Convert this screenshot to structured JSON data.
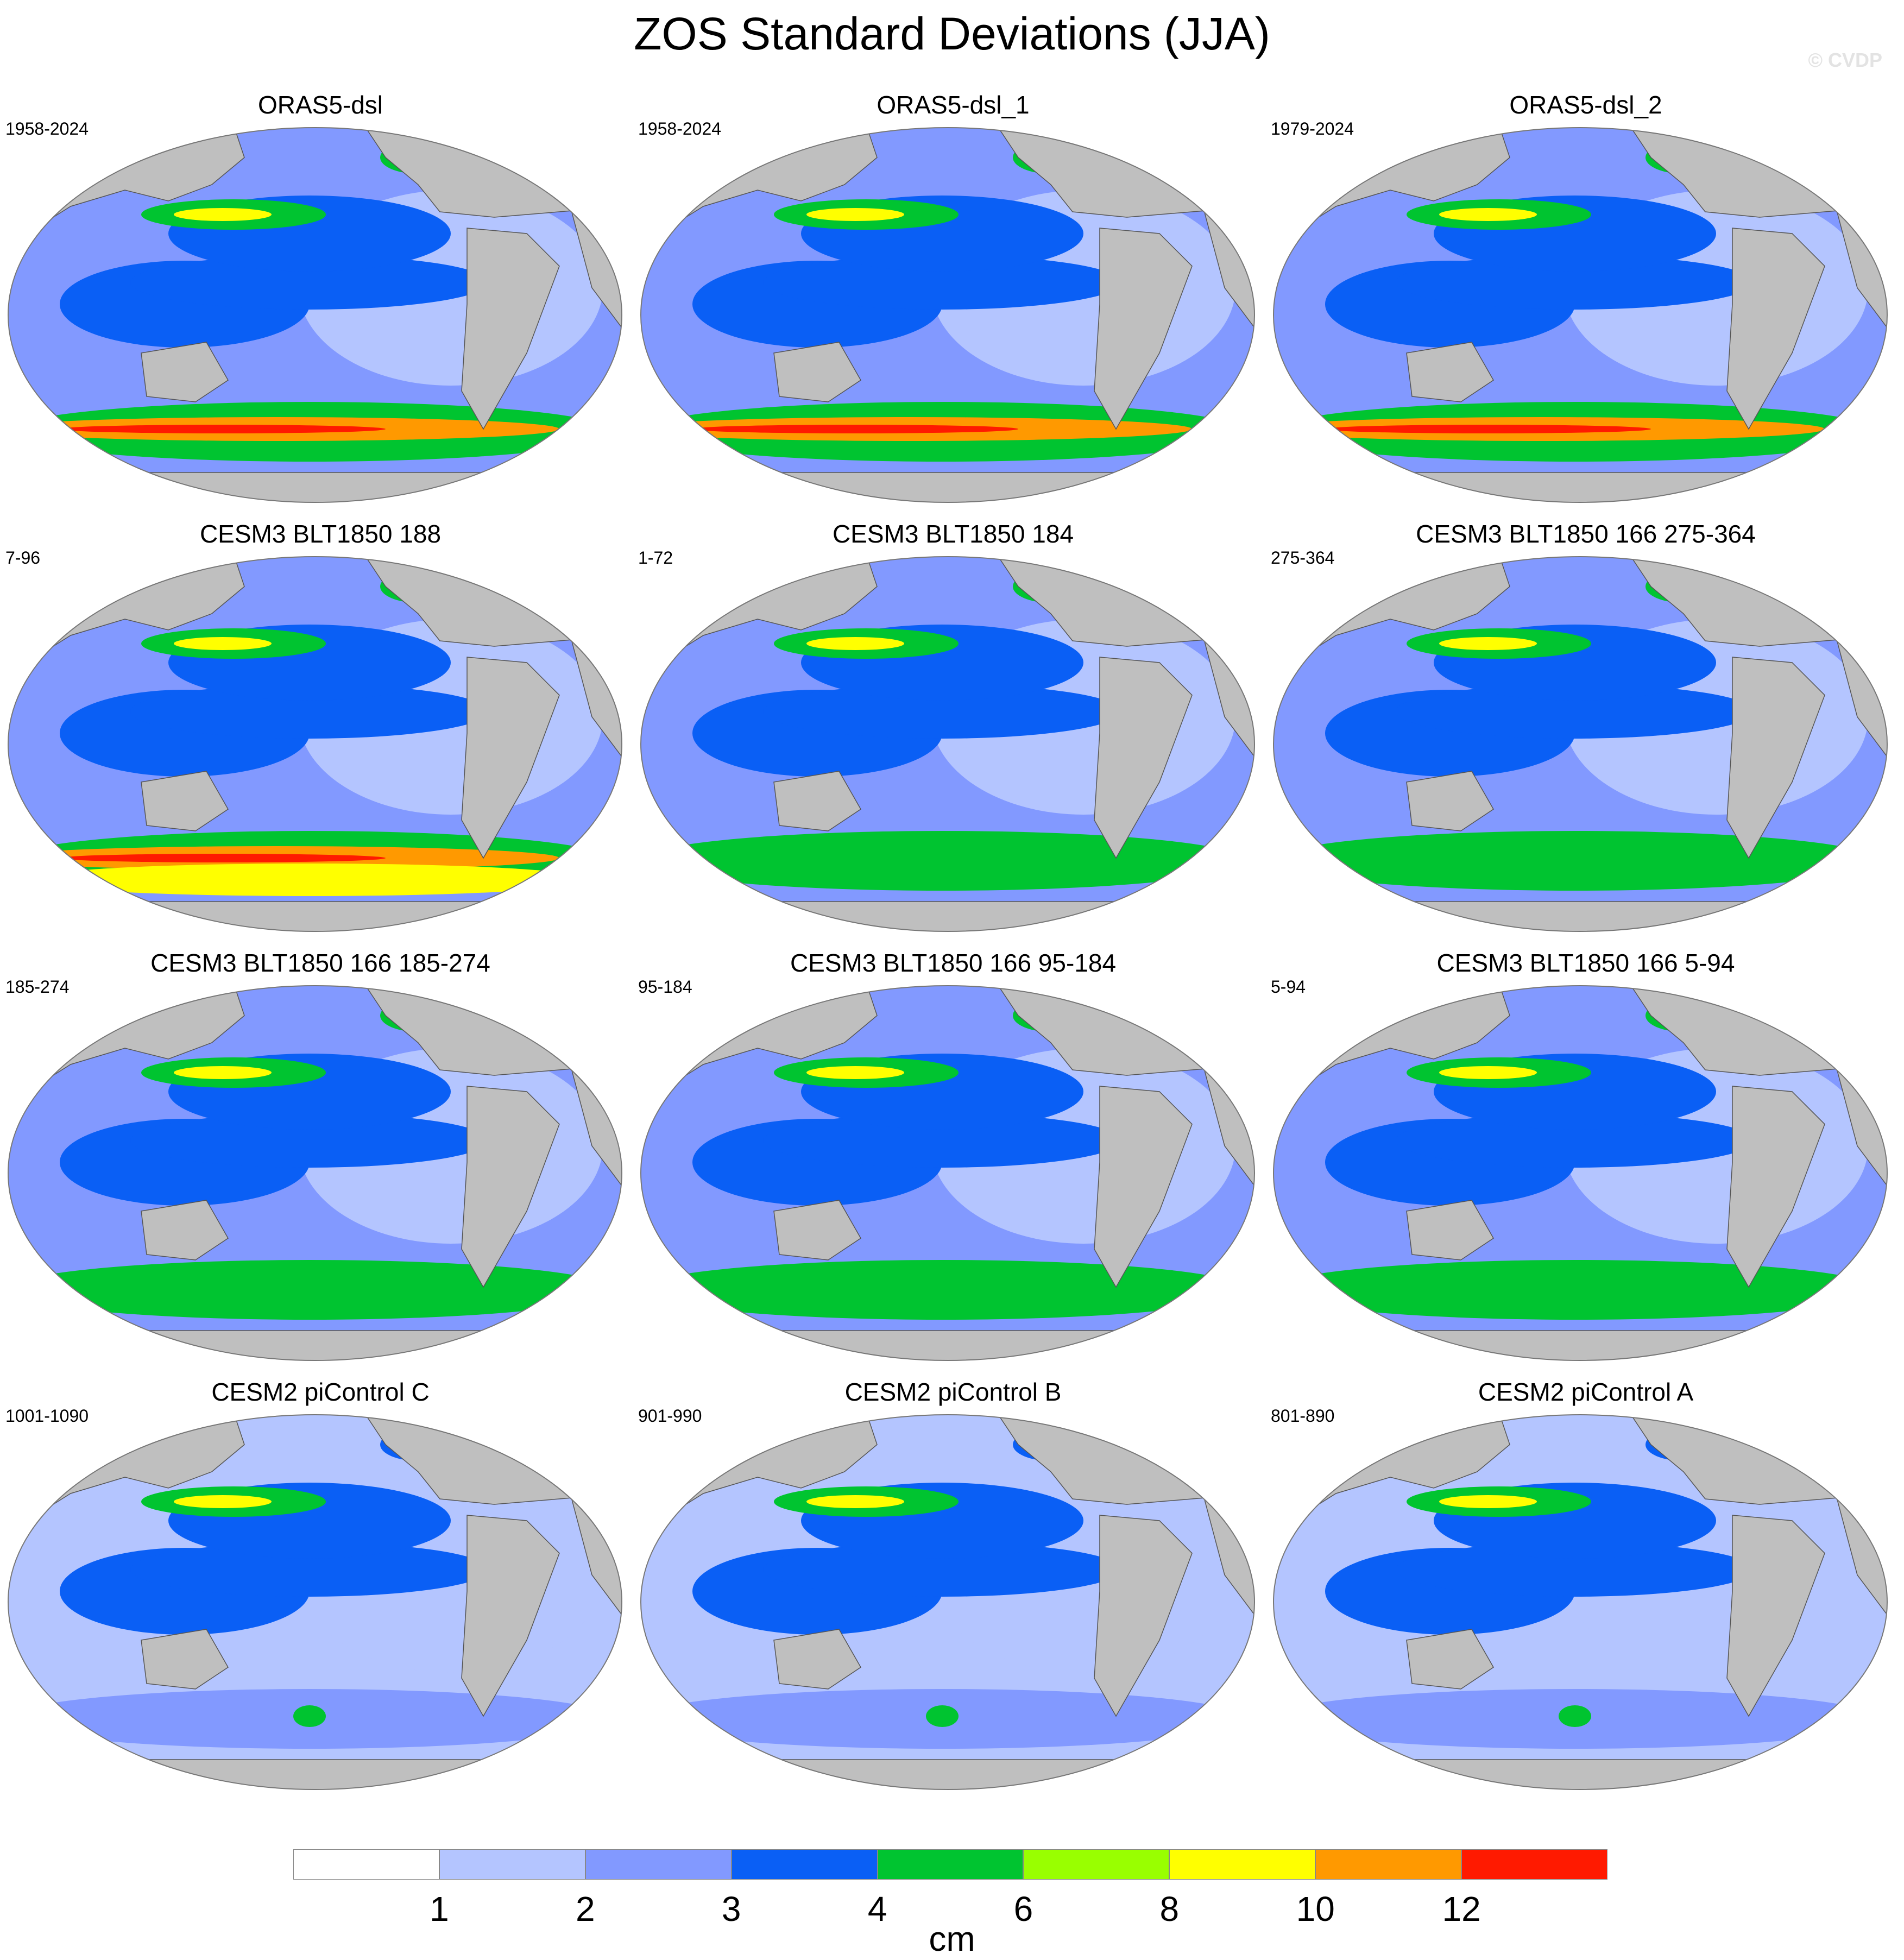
{
  "title": "ZOS Standard Deviations (JJA)",
  "watermark": "© CVDP",
  "panels": [
    {
      "title": "ORAS5-dsl",
      "years": "1958-2024",
      "intensity": "high"
    },
    {
      "title": "ORAS5-dsl_1",
      "years": "1958-2024",
      "intensity": "high"
    },
    {
      "title": "ORAS5-dsl_2",
      "years": "1979-2024",
      "intensity": "high"
    },
    {
      "title": "CESM3 BLT1850 188",
      "years": "7-96",
      "intensity": "veryhigh"
    },
    {
      "title": "CESM3 BLT1850 184",
      "years": "1-72",
      "intensity": "medium"
    },
    {
      "title": "CESM3 BLT1850 166 275-364",
      "years": "275-364",
      "intensity": "medium"
    },
    {
      "title": "CESM3 BLT1850 166 185-274",
      "years": "185-274",
      "intensity": "medium"
    },
    {
      "title": "CESM3 BLT1850 166 95-184",
      "years": "95-184",
      "intensity": "medium"
    },
    {
      "title": "CESM3 BLT1850 166 5-94",
      "years": "5-94",
      "intensity": "medium"
    },
    {
      "title": "CESM2 piControl C",
      "years": "1001-1090",
      "intensity": "low"
    },
    {
      "title": "CESM2 piControl B",
      "years": "901-990",
      "intensity": "low"
    },
    {
      "title": "CESM2 piControl A",
      "years": "801-890",
      "intensity": "low"
    }
  ],
  "colorbar": {
    "units": "cm",
    "colors": [
      "#ffffff",
      "#b4c5ff",
      "#8299ff",
      "#0a5ff5",
      "#00c430",
      "#99ff00",
      "#ffff00",
      "#ff9900",
      "#ff1a00"
    ],
    "labels": [
      "1",
      "2",
      "3",
      "4",
      "6",
      "8",
      "10",
      "12"
    ]
  },
  "colors": {
    "land": "#bfbfbf",
    "coast": "#555555"
  }
}
